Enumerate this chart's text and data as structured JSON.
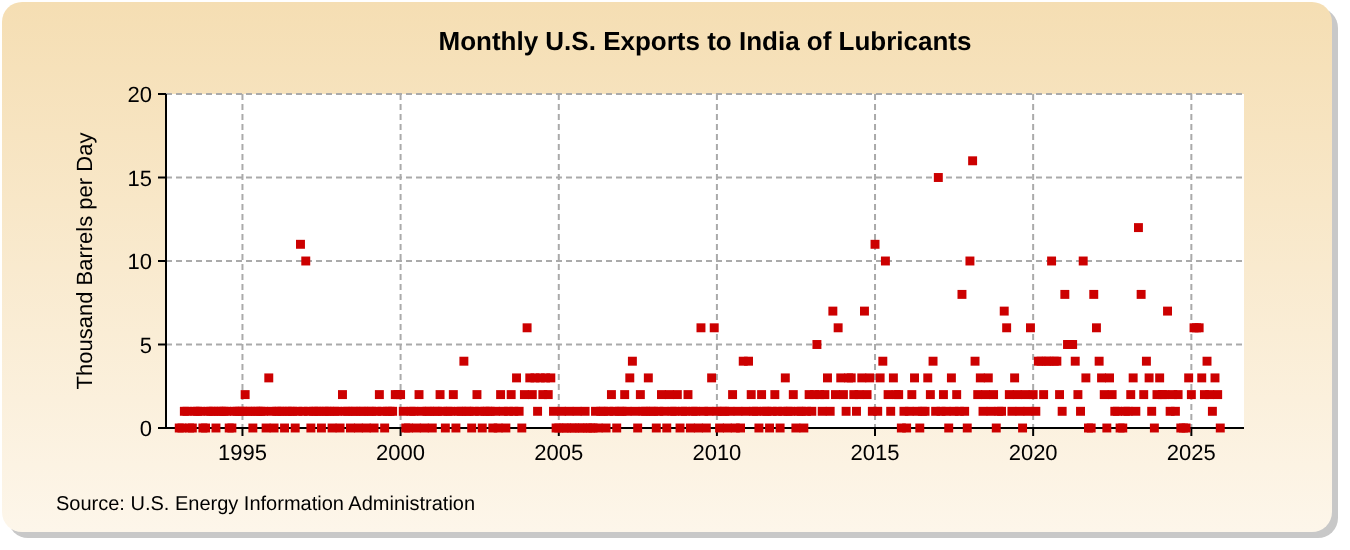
{
  "chart_data": {
    "type": "scatter",
    "title": "Monthly U.S. Exports to India of Lubricants",
    "ylabel": "Thousand Barrels per Day",
    "annotations": [
      "Source: U.S. Energy Information Administration"
    ],
    "marker": "square",
    "grid": true,
    "xlim": [
      "1992-08",
      "2026-09"
    ],
    "xticks": [
      "1995",
      "2000",
      "2005",
      "2010",
      "2015",
      "2020",
      "2025"
    ],
    "ylim": [
      0,
      20
    ],
    "yticks": [
      0,
      5,
      10,
      15,
      20
    ],
    "series": [
      {
        "color": "#cc0000",
        "x": [
          "1993-01",
          "1993-02",
          "1993-03",
          "1993-04",
          "1993-05",
          "1993-06",
          "1993-07",
          "1993-08",
          "1993-09",
          "1993-10",
          "1993-11",
          "1993-12",
          "1994-01",
          "1994-02",
          "1994-03",
          "1994-04",
          "1994-05",
          "1994-06",
          "1994-07",
          "1994-08",
          "1994-09",
          "1994-10",
          "1994-11",
          "1994-12",
          "1995-01",
          "1995-02",
          "1995-03",
          "1995-04",
          "1995-05",
          "1995-06",
          "1995-07",
          "1995-08",
          "1995-09",
          "1995-10",
          "1995-11",
          "1995-12",
          "1996-01",
          "1996-02",
          "1996-03",
          "1996-04",
          "1996-05",
          "1996-06",
          "1996-07",
          "1996-08",
          "1996-09",
          "1996-10",
          "1996-11",
          "1996-12",
          "1997-01",
          "1997-02",
          "1997-03",
          "1997-04",
          "1997-05",
          "1997-06",
          "1997-07",
          "1997-08",
          "1997-09",
          "1997-10",
          "1997-11",
          "1997-12",
          "1998-01",
          "1998-02",
          "1998-03",
          "1998-04",
          "1998-05",
          "1998-06",
          "1998-07",
          "1998-08",
          "1998-09",
          "1998-10",
          "1998-11",
          "1998-12",
          "1999-01",
          "1999-02",
          "1999-03",
          "1999-04",
          "1999-05",
          "1999-06",
          "1999-07",
          "1999-08",
          "1999-09",
          "1999-10",
          "1999-11",
          "1999-12",
          "2000-01",
          "2000-02",
          "2000-03",
          "2000-04",
          "2000-05",
          "2000-06",
          "2000-07",
          "2000-08",
          "2000-09",
          "2000-10",
          "2000-11",
          "2000-12",
          "2001-01",
          "2001-02",
          "2001-03",
          "2001-04",
          "2001-05",
          "2001-06",
          "2001-07",
          "2001-08",
          "2001-09",
          "2001-10",
          "2001-11",
          "2001-12",
          "2002-01",
          "2002-02",
          "2002-03",
          "2002-04",
          "2002-05",
          "2002-06",
          "2002-07",
          "2002-08",
          "2002-09",
          "2002-10",
          "2002-11",
          "2002-12",
          "2003-01",
          "2003-02",
          "2003-03",
          "2003-04",
          "2003-05",
          "2003-06",
          "2003-07",
          "2003-08",
          "2003-09",
          "2003-10",
          "2003-11",
          "2003-12",
          "2004-01",
          "2004-02",
          "2004-03",
          "2004-04",
          "2004-05",
          "2004-06",
          "2004-07",
          "2004-08",
          "2004-09",
          "2004-10",
          "2004-11",
          "2004-12",
          "2005-01",
          "2005-02",
          "2005-03",
          "2005-04",
          "2005-05",
          "2005-06",
          "2005-07",
          "2005-08",
          "2005-09",
          "2005-10",
          "2005-11",
          "2005-12",
          "2006-01",
          "2006-02",
          "2006-03",
          "2006-04",
          "2006-05",
          "2006-06",
          "2006-07",
          "2006-08",
          "2006-09",
          "2006-10",
          "2006-11",
          "2006-12",
          "2007-01",
          "2007-02",
          "2007-03",
          "2007-04",
          "2007-05",
          "2007-06",
          "2007-07",
          "2007-08",
          "2007-09",
          "2007-10",
          "2007-11",
          "2007-12",
          "2008-01",
          "2008-02",
          "2008-03",
          "2008-04",
          "2008-05",
          "2008-06",
          "2008-07",
          "2008-08",
          "2008-09",
          "2008-10",
          "2008-11",
          "2008-12",
          "2009-01",
          "2009-02",
          "2009-03",
          "2009-04",
          "2009-05",
          "2009-06",
          "2009-07",
          "2009-08",
          "2009-09",
          "2009-10",
          "2009-11",
          "2009-12",
          "2010-01",
          "2010-02",
          "2010-03",
          "2010-04",
          "2010-05",
          "2010-06",
          "2010-07",
          "2010-08",
          "2010-09",
          "2010-10",
          "2010-11",
          "2010-12",
          "2011-01",
          "2011-02",
          "2011-03",
          "2011-04",
          "2011-05",
          "2011-06",
          "2011-07",
          "2011-08",
          "2011-09",
          "2011-10",
          "2011-11",
          "2011-12",
          "2012-01",
          "2012-02",
          "2012-03",
          "2012-04",
          "2012-05",
          "2012-06",
          "2012-07",
          "2012-08",
          "2012-09",
          "2012-10",
          "2012-11",
          "2012-12",
          "2013-01",
          "2013-02",
          "2013-03",
          "2013-04",
          "2013-05",
          "2013-06",
          "2013-07",
          "2013-08",
          "2013-09",
          "2013-10",
          "2013-11",
          "2013-12",
          "2014-01",
          "2014-02",
          "2014-03",
          "2014-04",
          "2014-05",
          "2014-06",
          "2014-07",
          "2014-08",
          "2014-09",
          "2014-10",
          "2014-11",
          "2014-12",
          "2015-01",
          "2015-02",
          "2015-03",
          "2015-04",
          "2015-05",
          "2015-06",
          "2015-07",
          "2015-08",
          "2015-09",
          "2015-10",
          "2015-11",
          "2015-12",
          "2016-01",
          "2016-02",
          "2016-03",
          "2016-04",
          "2016-05",
          "2016-06",
          "2016-07",
          "2016-08",
          "2016-09",
          "2016-10",
          "2016-11",
          "2016-12",
          "2017-01",
          "2017-02",
          "2017-03",
          "2017-04",
          "2017-05",
          "2017-06",
          "2017-07",
          "2017-08",
          "2017-09",
          "2017-10",
          "2017-11",
          "2017-12",
          "2018-01",
          "2018-02",
          "2018-03",
          "2018-04",
          "2018-05",
          "2018-06",
          "2018-07",
          "2018-08",
          "2018-09",
          "2018-10",
          "2018-11",
          "2018-12",
          "2019-01",
          "2019-02",
          "2019-03",
          "2019-04",
          "2019-05",
          "2019-06",
          "2019-07",
          "2019-08",
          "2019-09",
          "2019-10",
          "2019-11",
          "2019-12",
          "2020-01",
          "2020-02",
          "2020-03",
          "2020-04",
          "2020-05",
          "2020-06",
          "2020-07",
          "2020-08",
          "2020-09",
          "2020-10",
          "2020-11",
          "2020-12",
          "2021-01",
          "2021-02",
          "2021-03",
          "2021-04",
          "2021-05",
          "2021-06",
          "2021-07",
          "2021-08",
          "2021-09",
          "2021-10",
          "2021-11",
          "2021-12",
          "2022-01",
          "2022-02",
          "2022-03",
          "2022-04",
          "2022-05",
          "2022-06",
          "2022-07",
          "2022-08",
          "2022-09",
          "2022-10",
          "2022-11",
          "2022-12",
          "2023-01",
          "2023-02",
          "2023-03",
          "2023-04",
          "2023-05",
          "2023-06",
          "2023-07",
          "2023-08",
          "2023-09",
          "2023-10",
          "2023-11",
          "2023-12",
          "2024-01",
          "2024-02",
          "2024-03",
          "2024-04",
          "2024-05",
          "2024-06",
          "2024-07",
          "2024-08",
          "2024-09",
          "2024-10",
          "2024-11",
          "2024-12",
          "2025-01",
          "2025-02",
          "2025-03",
          "2025-04",
          "2025-05",
          "2025-06",
          "2025-07",
          "2025-08",
          "2025-09",
          "2025-10",
          "2025-11",
          "2025-12"
        ],
        "values": [
          0,
          0,
          1,
          1,
          0,
          0,
          1,
          1,
          1,
          0,
          0,
          1,
          1,
          1,
          0,
          1,
          1,
          1,
          1,
          0,
          0,
          1,
          1,
          1,
          1,
          2,
          1,
          1,
          0,
          1,
          1,
          1,
          1,
          0,
          3,
          1,
          0,
          1,
          1,
          1,
          0,
          1,
          1,
          1,
          0,
          1,
          11,
          1,
          10,
          1,
          0,
          1,
          1,
          1,
          0,
          1,
          1,
          1,
          0,
          1,
          1,
          0,
          2,
          1,
          1,
          0,
          1,
          1,
          0,
          1,
          1,
          0,
          1,
          1,
          0,
          1,
          2,
          1,
          0,
          1,
          1,
          1,
          2,
          2,
          2,
          1,
          0,
          0,
          1,
          1,
          0,
          2,
          1,
          0,
          1,
          1,
          0,
          1,
          1,
          2,
          1,
          0,
          1,
          1,
          2,
          0,
          1,
          1,
          4,
          1,
          1,
          0,
          1,
          2,
          1,
          0,
          1,
          1,
          1,
          0,
          1,
          0,
          2,
          1,
          0,
          1,
          2,
          1,
          3,
          1,
          0,
          2,
          6,
          3,
          2,
          3,
          1,
          3,
          2,
          3,
          2,
          3,
          1,
          0,
          0,
          1,
          0,
          0,
          1,
          0,
          0,
          1,
          0,
          0,
          1,
          0,
          0,
          0,
          1,
          0,
          1,
          1,
          0,
          1,
          2,
          1,
          0,
          1,
          1,
          2,
          1,
          3,
          4,
          1,
          0,
          2,
          1,
          1,
          3,
          1,
          1,
          0,
          1,
          2,
          1,
          0,
          2,
          1,
          1,
          2,
          0,
          1,
          1,
          2,
          0,
          1,
          1,
          0,
          6,
          1,
          0,
          1,
          3,
          6,
          1,
          0,
          1,
          1,
          0,
          1,
          2,
          0,
          1,
          0,
          4,
          1,
          4,
          2,
          1,
          1,
          0,
          2,
          1,
          1,
          0,
          1,
          2,
          1,
          0,
          1,
          3,
          1,
          1,
          2,
          0,
          1,
          1,
          0,
          1,
          2,
          1,
          2,
          5,
          2,
          1,
          2,
          3,
          1,
          7,
          2,
          6,
          3,
          2,
          1,
          3,
          3,
          2,
          1,
          2,
          3,
          7,
          2,
          3,
          1,
          11,
          1,
          3,
          4,
          10,
          2,
          1,
          3,
          2,
          2,
          0,
          1,
          0,
          1,
          2,
          3,
          1,
          0,
          1,
          1,
          3,
          2,
          4,
          1,
          15,
          1,
          2,
          1,
          0,
          3,
          1,
          2,
          1,
          8,
          1,
          0,
          10,
          16,
          4,
          2,
          3,
          1,
          2,
          3,
          1,
          2,
          0,
          1,
          1,
          7,
          6,
          2,
          1,
          3,
          2,
          1,
          0,
          2,
          1,
          6,
          2,
          1,
          4,
          4,
          2,
          4,
          4,
          10,
          4,
          4,
          2,
          1,
          8,
          5,
          5,
          5,
          4,
          2,
          1,
          10,
          3,
          0,
          0,
          8,
          6,
          4,
          3,
          2,
          0,
          3,
          2,
          1,
          1,
          0,
          0,
          1,
          1,
          2,
          3,
          1,
          12,
          8,
          2,
          4,
          3,
          1,
          0,
          2,
          3,
          2,
          2,
          7,
          1,
          2,
          1,
          2,
          0,
          0,
          0,
          3,
          2,
          6,
          6,
          6,
          3,
          2,
          4,
          2,
          1,
          3,
          2,
          0
        ]
      }
    ]
  }
}
